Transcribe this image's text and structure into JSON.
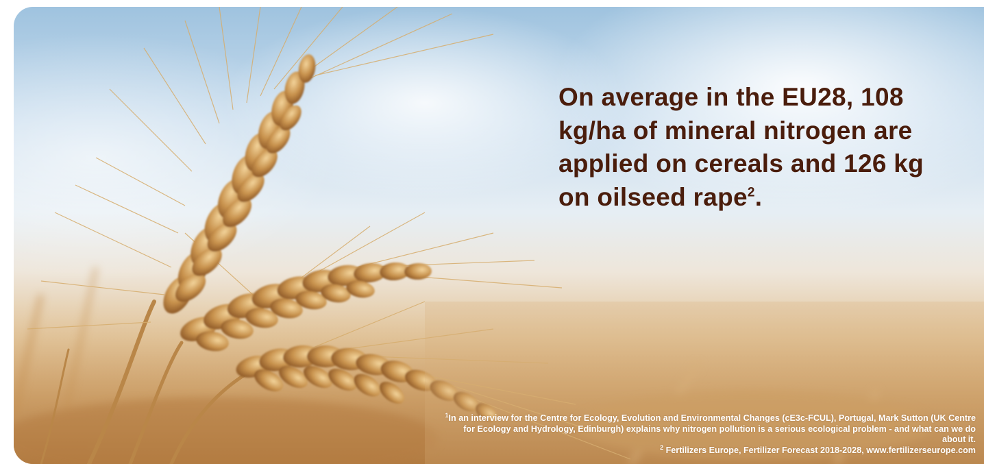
{
  "headline": {
    "text": "On average in the EU28, 108 kg/ha of mineral nitrogen are applied on cereals and 126 kg on oilseed rape",
    "superscript": "2",
    "end_punct": "."
  },
  "footnotes": {
    "note1": {
      "marker": "1",
      "text": "In an interview for the Centre for Ecology, Evolution and Environmental Changes (cE3c-FCUL), Portugal, Mark Sutton (UK Centre for Ecology and Hydrology, Edinburgh) explains why nitrogen pollution is a serious ecological problem - and what can we do about it."
    },
    "note2": {
      "marker": "2",
      "text": "Fertilizers Europe, Fertilizer Forecast 2018-2028, www.fertilizerseurope.com"
    }
  },
  "background": {
    "image": "wheat-ears-against-sky-photo",
    "colors": {
      "sky": "#c9ddee",
      "field": "#cf9e63",
      "wheat": "#b8843f",
      "headline": "#4a1d0c"
    }
  }
}
